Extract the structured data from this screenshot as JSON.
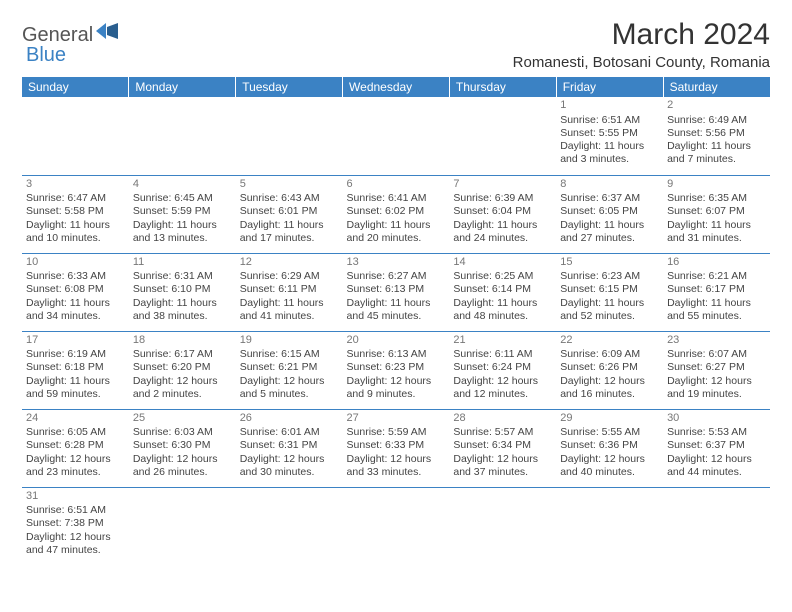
{
  "logo": {
    "general": "General",
    "blue": "Blue"
  },
  "title": "March 2024",
  "location": "Romanesti, Botosani County, Romania",
  "colors": {
    "header_bg": "#3b82c4",
    "header_fg": "#ffffff",
    "text": "#444444",
    "daynum": "#777777",
    "divider": "#3b82c4"
  },
  "day_headers": [
    "Sunday",
    "Monday",
    "Tuesday",
    "Wednesday",
    "Thursday",
    "Friday",
    "Saturday"
  ],
  "weeks": [
    [
      null,
      null,
      null,
      null,
      null,
      {
        "n": "1",
        "sr": "Sunrise: 6:51 AM",
        "ss": "Sunset: 5:55 PM",
        "d1": "Daylight: 11 hours",
        "d2": "and 3 minutes."
      },
      {
        "n": "2",
        "sr": "Sunrise: 6:49 AM",
        "ss": "Sunset: 5:56 PM",
        "d1": "Daylight: 11 hours",
        "d2": "and 7 minutes."
      }
    ],
    [
      {
        "n": "3",
        "sr": "Sunrise: 6:47 AM",
        "ss": "Sunset: 5:58 PM",
        "d1": "Daylight: 11 hours",
        "d2": "and 10 minutes."
      },
      {
        "n": "4",
        "sr": "Sunrise: 6:45 AM",
        "ss": "Sunset: 5:59 PM",
        "d1": "Daylight: 11 hours",
        "d2": "and 13 minutes."
      },
      {
        "n": "5",
        "sr": "Sunrise: 6:43 AM",
        "ss": "Sunset: 6:01 PM",
        "d1": "Daylight: 11 hours",
        "d2": "and 17 minutes."
      },
      {
        "n": "6",
        "sr": "Sunrise: 6:41 AM",
        "ss": "Sunset: 6:02 PM",
        "d1": "Daylight: 11 hours",
        "d2": "and 20 minutes."
      },
      {
        "n": "7",
        "sr": "Sunrise: 6:39 AM",
        "ss": "Sunset: 6:04 PM",
        "d1": "Daylight: 11 hours",
        "d2": "and 24 minutes."
      },
      {
        "n": "8",
        "sr": "Sunrise: 6:37 AM",
        "ss": "Sunset: 6:05 PM",
        "d1": "Daylight: 11 hours",
        "d2": "and 27 minutes."
      },
      {
        "n": "9",
        "sr": "Sunrise: 6:35 AM",
        "ss": "Sunset: 6:07 PM",
        "d1": "Daylight: 11 hours",
        "d2": "and 31 minutes."
      }
    ],
    [
      {
        "n": "10",
        "sr": "Sunrise: 6:33 AM",
        "ss": "Sunset: 6:08 PM",
        "d1": "Daylight: 11 hours",
        "d2": "and 34 minutes."
      },
      {
        "n": "11",
        "sr": "Sunrise: 6:31 AM",
        "ss": "Sunset: 6:10 PM",
        "d1": "Daylight: 11 hours",
        "d2": "and 38 minutes."
      },
      {
        "n": "12",
        "sr": "Sunrise: 6:29 AM",
        "ss": "Sunset: 6:11 PM",
        "d1": "Daylight: 11 hours",
        "d2": "and 41 minutes."
      },
      {
        "n": "13",
        "sr": "Sunrise: 6:27 AM",
        "ss": "Sunset: 6:13 PM",
        "d1": "Daylight: 11 hours",
        "d2": "and 45 minutes."
      },
      {
        "n": "14",
        "sr": "Sunrise: 6:25 AM",
        "ss": "Sunset: 6:14 PM",
        "d1": "Daylight: 11 hours",
        "d2": "and 48 minutes."
      },
      {
        "n": "15",
        "sr": "Sunrise: 6:23 AM",
        "ss": "Sunset: 6:15 PM",
        "d1": "Daylight: 11 hours",
        "d2": "and 52 minutes."
      },
      {
        "n": "16",
        "sr": "Sunrise: 6:21 AM",
        "ss": "Sunset: 6:17 PM",
        "d1": "Daylight: 11 hours",
        "d2": "and 55 minutes."
      }
    ],
    [
      {
        "n": "17",
        "sr": "Sunrise: 6:19 AM",
        "ss": "Sunset: 6:18 PM",
        "d1": "Daylight: 11 hours",
        "d2": "and 59 minutes."
      },
      {
        "n": "18",
        "sr": "Sunrise: 6:17 AM",
        "ss": "Sunset: 6:20 PM",
        "d1": "Daylight: 12 hours",
        "d2": "and 2 minutes."
      },
      {
        "n": "19",
        "sr": "Sunrise: 6:15 AM",
        "ss": "Sunset: 6:21 PM",
        "d1": "Daylight: 12 hours",
        "d2": "and 5 minutes."
      },
      {
        "n": "20",
        "sr": "Sunrise: 6:13 AM",
        "ss": "Sunset: 6:23 PM",
        "d1": "Daylight: 12 hours",
        "d2": "and 9 minutes."
      },
      {
        "n": "21",
        "sr": "Sunrise: 6:11 AM",
        "ss": "Sunset: 6:24 PM",
        "d1": "Daylight: 12 hours",
        "d2": "and 12 minutes."
      },
      {
        "n": "22",
        "sr": "Sunrise: 6:09 AM",
        "ss": "Sunset: 6:26 PM",
        "d1": "Daylight: 12 hours",
        "d2": "and 16 minutes."
      },
      {
        "n": "23",
        "sr": "Sunrise: 6:07 AM",
        "ss": "Sunset: 6:27 PM",
        "d1": "Daylight: 12 hours",
        "d2": "and 19 minutes."
      }
    ],
    [
      {
        "n": "24",
        "sr": "Sunrise: 6:05 AM",
        "ss": "Sunset: 6:28 PM",
        "d1": "Daylight: 12 hours",
        "d2": "and 23 minutes."
      },
      {
        "n": "25",
        "sr": "Sunrise: 6:03 AM",
        "ss": "Sunset: 6:30 PM",
        "d1": "Daylight: 12 hours",
        "d2": "and 26 minutes."
      },
      {
        "n": "26",
        "sr": "Sunrise: 6:01 AM",
        "ss": "Sunset: 6:31 PM",
        "d1": "Daylight: 12 hours",
        "d2": "and 30 minutes."
      },
      {
        "n": "27",
        "sr": "Sunrise: 5:59 AM",
        "ss": "Sunset: 6:33 PM",
        "d1": "Daylight: 12 hours",
        "d2": "and 33 minutes."
      },
      {
        "n": "28",
        "sr": "Sunrise: 5:57 AM",
        "ss": "Sunset: 6:34 PM",
        "d1": "Daylight: 12 hours",
        "d2": "and 37 minutes."
      },
      {
        "n": "29",
        "sr": "Sunrise: 5:55 AM",
        "ss": "Sunset: 6:36 PM",
        "d1": "Daylight: 12 hours",
        "d2": "and 40 minutes."
      },
      {
        "n": "30",
        "sr": "Sunrise: 5:53 AM",
        "ss": "Sunset: 6:37 PM",
        "d1": "Daylight: 12 hours",
        "d2": "and 44 minutes."
      }
    ],
    [
      {
        "n": "31",
        "sr": "Sunrise: 6:51 AM",
        "ss": "Sunset: 7:38 PM",
        "d1": "Daylight: 12 hours",
        "d2": "and 47 minutes."
      },
      null,
      null,
      null,
      null,
      null,
      null
    ]
  ]
}
